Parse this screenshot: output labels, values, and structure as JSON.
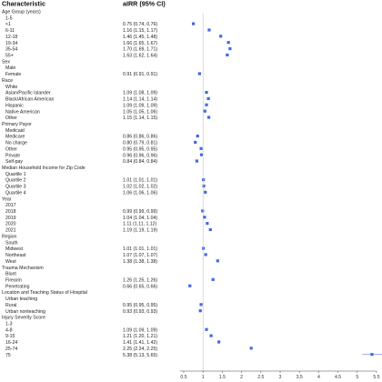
{
  "chart_data": {
    "type": "forest",
    "headers": {
      "characteristic": "Characteristic",
      "estimate": "aIRR (95% CI)"
    },
    "reference_line": 1,
    "xlim": [
      0.4,
      5.5
    ],
    "x_ticks": [
      "0.5",
      "1",
      "1.5",
      "2",
      "2.5",
      "3",
      "3.5",
      "4",
      "4.5",
      "5",
      "5.5"
    ],
    "marker_color": "#4169e1",
    "rows": [
      {
        "kind": "category",
        "label": "Age Group (years)"
      },
      {
        "kind": "level",
        "label": "1-5"
      },
      {
        "kind": "level",
        "label": "<1",
        "est_text": "0.75 (0.74, 0.76)",
        "est": 0.75,
        "lo": 0.74,
        "hi": 0.76
      },
      {
        "kind": "level",
        "label": "6-11",
        "est_text": "1.16 (1.15, 1.17)",
        "est": 1.16,
        "lo": 1.15,
        "hi": 1.17
      },
      {
        "kind": "level",
        "label": "12-18",
        "est_text": "1.46 (1.45, 1.48)",
        "est": 1.46,
        "lo": 1.45,
        "hi": 1.48
      },
      {
        "kind": "level",
        "label": "19-34",
        "est_text": "1.66 (1.65, 1.67)",
        "est": 1.66,
        "lo": 1.65,
        "hi": 1.67
      },
      {
        "kind": "level",
        "label": "35-54",
        "est_text": "1.70 (1.69, 1.71)",
        "est": 1.7,
        "lo": 1.69,
        "hi": 1.71
      },
      {
        "kind": "level",
        "label": "55+",
        "est_text": "1.63 (1.62, 1.64)",
        "est": 1.63,
        "lo": 1.62,
        "hi": 1.64
      },
      {
        "kind": "category",
        "label": "Sex"
      },
      {
        "kind": "level",
        "label": "Male"
      },
      {
        "kind": "level",
        "label": "Female",
        "est_text": "0.91 (0.91, 0.91)",
        "est": 0.91,
        "lo": 0.91,
        "hi": 0.91
      },
      {
        "kind": "category",
        "label": "Race"
      },
      {
        "kind": "level",
        "label": "White"
      },
      {
        "kind": "level",
        "label": "Asian/Pacific Islander",
        "est_text": "1.09 (1.08, 1.09)",
        "est": 1.09,
        "lo": 1.08,
        "hi": 1.09
      },
      {
        "kind": "level",
        "label": "Black/African American",
        "est_text": "1.14 (1.14, 1.14)",
        "est": 1.14,
        "lo": 1.14,
        "hi": 1.14
      },
      {
        "kind": "level",
        "label": "Hispanic",
        "est_text": "1.09 (1.09, 1.09)",
        "est": 1.09,
        "lo": 1.09,
        "hi": 1.09
      },
      {
        "kind": "level",
        "label": "Native American",
        "est_text": "1.05 (1.05, 1.06)",
        "est": 1.05,
        "lo": 1.05,
        "hi": 1.06
      },
      {
        "kind": "level",
        "label": "Other",
        "est_text": "1.15 (1.14, 1.15)",
        "est": 1.15,
        "lo": 1.14,
        "hi": 1.15
      },
      {
        "kind": "category",
        "label": "Primary Payor"
      },
      {
        "kind": "level",
        "label": "Medicaid"
      },
      {
        "kind": "level",
        "label": "Medicare",
        "est_text": "0.86 (0.86, 0.86)",
        "est": 0.86,
        "lo": 0.86,
        "hi": 0.86
      },
      {
        "kind": "level",
        "label": "No charge",
        "est_text": "0.80 (0.79, 0.81)",
        "est": 0.8,
        "lo": 0.79,
        "hi": 0.81
      },
      {
        "kind": "level",
        "label": "Other",
        "est_text": "0.95 (0.95, 0.95)",
        "est": 0.95,
        "lo": 0.95,
        "hi": 0.95
      },
      {
        "kind": "level",
        "label": "Private",
        "est_text": "0.96 (0.96, 0.96)",
        "est": 0.96,
        "lo": 0.96,
        "hi": 0.96
      },
      {
        "kind": "level",
        "label": "Self-pay",
        "est_text": "0.84 (0.84, 0.84)",
        "est": 0.84,
        "lo": 0.84,
        "hi": 0.84
      },
      {
        "kind": "category",
        "label": "Median Household Income for Zip Code"
      },
      {
        "kind": "level",
        "label": "Quartile 1"
      },
      {
        "kind": "level",
        "label": "Quartile 2",
        "est_text": "1.01 (1.01, 1.01)",
        "est": 1.01,
        "lo": 1.01,
        "hi": 1.01
      },
      {
        "kind": "level",
        "label": "Quartile 3",
        "est_text": "1.02 (1.02, 1.02)",
        "est": 1.02,
        "lo": 1.02,
        "hi": 1.02
      },
      {
        "kind": "level",
        "label": "Quartile 4",
        "est_text": "1.06 (1.06, 1.06)",
        "est": 1.06,
        "lo": 1.06,
        "hi": 1.06
      },
      {
        "kind": "category",
        "label": "Year"
      },
      {
        "kind": "level",
        "label": "2017"
      },
      {
        "kind": "level",
        "label": "2018",
        "est_text": "0.99 (0.99, 0.99)",
        "est": 0.99,
        "lo": 0.99,
        "hi": 0.99
      },
      {
        "kind": "level",
        "label": "2019",
        "est_text": "1.04 (1.04, 1.04)",
        "est": 1.04,
        "lo": 1.04,
        "hi": 1.04
      },
      {
        "kind": "level",
        "label": "2020",
        "est_text": "1.11 (1.11, 1.12)",
        "est": 1.11,
        "lo": 1.11,
        "hi": 1.12
      },
      {
        "kind": "level",
        "label": "2021",
        "est_text": "1.19 (1.19, 1.19)",
        "est": 1.19,
        "lo": 1.19,
        "hi": 1.19
      },
      {
        "kind": "category",
        "label": "Region"
      },
      {
        "kind": "level",
        "label": "South"
      },
      {
        "kind": "level",
        "label": "Midwest",
        "est_text": "1.01 (1.01, 1.01)",
        "est": 1.01,
        "lo": 1.01,
        "hi": 1.01
      },
      {
        "kind": "level",
        "label": "Northeast",
        "est_text": "1.07 (1.07, 1.07)",
        "est": 1.07,
        "lo": 1.07,
        "hi": 1.07
      },
      {
        "kind": "level",
        "label": "West",
        "est_text": "1.38 (1.38, 1.38)",
        "est": 1.38,
        "lo": 1.38,
        "hi": 1.38
      },
      {
        "kind": "category",
        "label": "Trauma Mechanism"
      },
      {
        "kind": "level",
        "label": "Blunt"
      },
      {
        "kind": "level",
        "label": "Firearm",
        "est_text": "1.26 (1.25, 1.26)",
        "est": 1.26,
        "lo": 1.25,
        "hi": 1.26
      },
      {
        "kind": "level",
        "label": "Penetrating",
        "est_text": "0.66 (0.65, 0.66)",
        "est": 0.66,
        "lo": 0.65,
        "hi": 0.66
      },
      {
        "kind": "category",
        "label": "Location and Teaching Status of Hospital"
      },
      {
        "kind": "level",
        "label": "Urban teaching"
      },
      {
        "kind": "level",
        "label": "Rural",
        "est_text": "0.95 (0.95, 0.95)",
        "est": 0.95,
        "lo": 0.95,
        "hi": 0.95
      },
      {
        "kind": "level",
        "label": "Urban nonteaching",
        "est_text": "0.93 (0.93, 0.93)",
        "est": 0.93,
        "lo": 0.93,
        "hi": 0.93
      },
      {
        "kind": "category",
        "label": "Injury Severity Score"
      },
      {
        "kind": "level",
        "label": "1-3"
      },
      {
        "kind": "level",
        "label": "4-8",
        "est_text": "1.09 (1.09, 1.09)",
        "est": 1.09,
        "lo": 1.09,
        "hi": 1.09
      },
      {
        "kind": "level",
        "label": "9-15",
        "est_text": "1.21 (1.20, 1.21)",
        "est": 1.21,
        "lo": 1.2,
        "hi": 1.21
      },
      {
        "kind": "level",
        "label": "16-24",
        "est_text": "1.41 (1.41, 1.42)",
        "est": 1.41,
        "lo": 1.41,
        "hi": 1.42
      },
      {
        "kind": "level",
        "label": "25-74",
        "est_text": "2.25 (2.24, 2.25)",
        "est": 2.25,
        "lo": 2.24,
        "hi": 2.25
      },
      {
        "kind": "level",
        "label": "75",
        "est_text": "5.38 (5.13, 5.65)",
        "est": 5.38,
        "lo": 5.13,
        "hi": 5.65
      }
    ]
  }
}
